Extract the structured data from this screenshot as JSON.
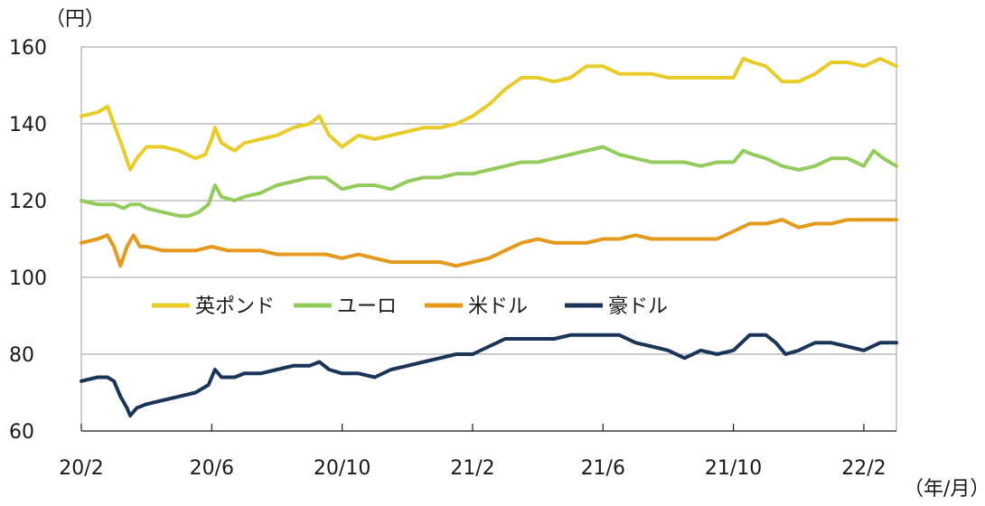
{
  "chart_data": {
    "type": "line",
    "y_unit_label": "（円）",
    "x_unit_label": "（年/月）",
    "ylim": [
      60,
      160
    ],
    "y_ticks": [
      60,
      80,
      100,
      120,
      140,
      160
    ],
    "x_tick_labels": [
      "20/2",
      "20/6",
      "20/10",
      "21/2",
      "21/6",
      "21/10",
      "22/2"
    ],
    "x_tick_months": [
      0,
      4,
      8,
      12,
      16,
      20,
      24
    ],
    "x_range_months": [
      0,
      25.0
    ],
    "grid": "horizontal",
    "legend_placement": "center-left",
    "series": [
      {
        "name": "英ポンド",
        "color": "#e8cc2a",
        "points": [
          [
            0.0,
            142
          ],
          [
            0.5,
            143
          ],
          [
            0.8,
            144.5
          ],
          [
            1.0,
            140
          ],
          [
            1.3,
            133
          ],
          [
            1.5,
            128
          ],
          [
            1.7,
            131
          ],
          [
            2.0,
            134
          ],
          [
            2.5,
            134
          ],
          [
            3.0,
            133
          ],
          [
            3.5,
            131
          ],
          [
            3.8,
            132
          ],
          [
            4.0,
            136
          ],
          [
            4.1,
            139
          ],
          [
            4.3,
            135
          ],
          [
            4.7,
            133
          ],
          [
            5.0,
            135
          ],
          [
            5.5,
            136
          ],
          [
            6.0,
            137
          ],
          [
            6.5,
            139
          ],
          [
            7.0,
            140
          ],
          [
            7.3,
            142
          ],
          [
            7.6,
            137
          ],
          [
            8.0,
            134
          ],
          [
            8.5,
            137
          ],
          [
            9.0,
            136
          ],
          [
            9.5,
            137
          ],
          [
            10.0,
            138
          ],
          [
            10.5,
            139
          ],
          [
            11.0,
            139
          ],
          [
            11.5,
            140
          ],
          [
            12.0,
            142
          ],
          [
            12.5,
            145
          ],
          [
            13.0,
            149
          ],
          [
            13.5,
            152
          ],
          [
            14.0,
            152
          ],
          [
            14.5,
            151
          ],
          [
            15.0,
            152
          ],
          [
            15.5,
            155
          ],
          [
            16.0,
            155
          ],
          [
            16.5,
            153
          ],
          [
            17.0,
            153
          ],
          [
            17.5,
            153
          ],
          [
            18.0,
            152
          ],
          [
            18.5,
            152
          ],
          [
            19.0,
            152
          ],
          [
            19.5,
            152
          ],
          [
            20.0,
            152
          ],
          [
            20.3,
            157
          ],
          [
            20.6,
            156
          ],
          [
            21.0,
            155
          ],
          [
            21.5,
            151
          ],
          [
            22.0,
            151
          ],
          [
            22.5,
            153
          ],
          [
            23.0,
            156
          ],
          [
            23.5,
            156
          ],
          [
            24.0,
            155
          ],
          [
            24.5,
            157
          ],
          [
            25.0,
            155
          ]
        ]
      },
      {
        "name": "ユーロ",
        "color": "#93cc5c",
        "points": [
          [
            0.0,
            120
          ],
          [
            0.5,
            119
          ],
          [
            1.0,
            119
          ],
          [
            1.3,
            118
          ],
          [
            1.5,
            119
          ],
          [
            1.8,
            119
          ],
          [
            2.0,
            118
          ],
          [
            2.5,
            117
          ],
          [
            3.0,
            116
          ],
          [
            3.3,
            116
          ],
          [
            3.6,
            117
          ],
          [
            3.9,
            119
          ],
          [
            4.1,
            124
          ],
          [
            4.3,
            121
          ],
          [
            4.7,
            120
          ],
          [
            5.0,
            121
          ],
          [
            5.5,
            122
          ],
          [
            6.0,
            124
          ],
          [
            6.5,
            125
          ],
          [
            7.0,
            126
          ],
          [
            7.5,
            126
          ],
          [
            8.0,
            123
          ],
          [
            8.5,
            124
          ],
          [
            9.0,
            124
          ],
          [
            9.5,
            123
          ],
          [
            10.0,
            125
          ],
          [
            10.5,
            126
          ],
          [
            11.0,
            126
          ],
          [
            11.5,
            127
          ],
          [
            12.0,
            127
          ],
          [
            12.5,
            128
          ],
          [
            13.0,
            129
          ],
          [
            13.5,
            130
          ],
          [
            14.0,
            130
          ],
          [
            14.5,
            131
          ],
          [
            15.0,
            132
          ],
          [
            15.5,
            133
          ],
          [
            16.0,
            134
          ],
          [
            16.5,
            132
          ],
          [
            17.0,
            131
          ],
          [
            17.5,
            130
          ],
          [
            18.0,
            130
          ],
          [
            18.5,
            130
          ],
          [
            19.0,
            129
          ],
          [
            19.5,
            130
          ],
          [
            20.0,
            130
          ],
          [
            20.3,
            133
          ],
          [
            20.6,
            132
          ],
          [
            21.0,
            131
          ],
          [
            21.5,
            129
          ],
          [
            22.0,
            128
          ],
          [
            22.5,
            129
          ],
          [
            23.0,
            131
          ],
          [
            23.5,
            131
          ],
          [
            24.0,
            129
          ],
          [
            24.3,
            133
          ],
          [
            24.6,
            131
          ],
          [
            25.0,
            129
          ]
        ]
      },
      {
        "name": "米ドル",
        "color": "#e39a1e",
        "points": [
          [
            0.0,
            109
          ],
          [
            0.5,
            110
          ],
          [
            0.8,
            111
          ],
          [
            1.0,
            108
          ],
          [
            1.2,
            103
          ],
          [
            1.4,
            108
          ],
          [
            1.6,
            111
          ],
          [
            1.8,
            108
          ],
          [
            2.0,
            108
          ],
          [
            2.5,
            107
          ],
          [
            3.0,
            107
          ],
          [
            3.5,
            107
          ],
          [
            4.0,
            108
          ],
          [
            4.5,
            107
          ],
          [
            5.0,
            107
          ],
          [
            5.5,
            107
          ],
          [
            6.0,
            106
          ],
          [
            6.5,
            106
          ],
          [
            7.0,
            106
          ],
          [
            7.5,
            106
          ],
          [
            8.0,
            105
          ],
          [
            8.5,
            106
          ],
          [
            9.0,
            105
          ],
          [
            9.5,
            104
          ],
          [
            10.0,
            104
          ],
          [
            10.5,
            104
          ],
          [
            11.0,
            104
          ],
          [
            11.5,
            103
          ],
          [
            12.0,
            104
          ],
          [
            12.5,
            105
          ],
          [
            13.0,
            107
          ],
          [
            13.5,
            109
          ],
          [
            14.0,
            110
          ],
          [
            14.5,
            109
          ],
          [
            15.0,
            109
          ],
          [
            15.5,
            109
          ],
          [
            16.0,
            110
          ],
          [
            16.5,
            110
          ],
          [
            17.0,
            111
          ],
          [
            17.5,
            110
          ],
          [
            18.0,
            110
          ],
          [
            18.5,
            110
          ],
          [
            19.0,
            110
          ],
          [
            19.5,
            110
          ],
          [
            20.0,
            112
          ],
          [
            20.5,
            114
          ],
          [
            21.0,
            114
          ],
          [
            21.5,
            115
          ],
          [
            22.0,
            113
          ],
          [
            22.5,
            114
          ],
          [
            23.0,
            114
          ],
          [
            23.5,
            115
          ],
          [
            24.0,
            115
          ],
          [
            24.5,
            115
          ],
          [
            25.0,
            115
          ]
        ]
      },
      {
        "name": "豪ドル",
        "color": "#1a3558",
        "points": [
          [
            0.0,
            73
          ],
          [
            0.5,
            74
          ],
          [
            0.8,
            74
          ],
          [
            1.0,
            73
          ],
          [
            1.2,
            69
          ],
          [
            1.4,
            66
          ],
          [
            1.5,
            64
          ],
          [
            1.7,
            66
          ],
          [
            2.0,
            67
          ],
          [
            2.5,
            68
          ],
          [
            3.0,
            69
          ],
          [
            3.5,
            70
          ],
          [
            3.9,
            72
          ],
          [
            4.1,
            76
          ],
          [
            4.3,
            74
          ],
          [
            4.7,
            74
          ],
          [
            5.0,
            75
          ],
          [
            5.5,
            75
          ],
          [
            6.0,
            76
          ],
          [
            6.5,
            77
          ],
          [
            7.0,
            77
          ],
          [
            7.3,
            78
          ],
          [
            7.6,
            76
          ],
          [
            8.0,
            75
          ],
          [
            8.5,
            75
          ],
          [
            9.0,
            74
          ],
          [
            9.5,
            76
          ],
          [
            10.0,
            77
          ],
          [
            10.5,
            78
          ],
          [
            11.0,
            79
          ],
          [
            11.5,
            80
          ],
          [
            12.0,
            80
          ],
          [
            12.5,
            82
          ],
          [
            13.0,
            84
          ],
          [
            13.5,
            84
          ],
          [
            14.0,
            84
          ],
          [
            14.5,
            84
          ],
          [
            15.0,
            85
          ],
          [
            15.5,
            85
          ],
          [
            16.0,
            85
          ],
          [
            16.5,
            85
          ],
          [
            17.0,
            83
          ],
          [
            17.5,
            82
          ],
          [
            18.0,
            81
          ],
          [
            18.5,
            79
          ],
          [
            19.0,
            81
          ],
          [
            19.5,
            80
          ],
          [
            20.0,
            81
          ],
          [
            20.5,
            85
          ],
          [
            21.0,
            85
          ],
          [
            21.3,
            83
          ],
          [
            21.6,
            80
          ],
          [
            22.0,
            81
          ],
          [
            22.5,
            83
          ],
          [
            23.0,
            83
          ],
          [
            23.5,
            82
          ],
          [
            24.0,
            81
          ],
          [
            24.5,
            83
          ],
          [
            25.0,
            83
          ]
        ]
      }
    ]
  }
}
